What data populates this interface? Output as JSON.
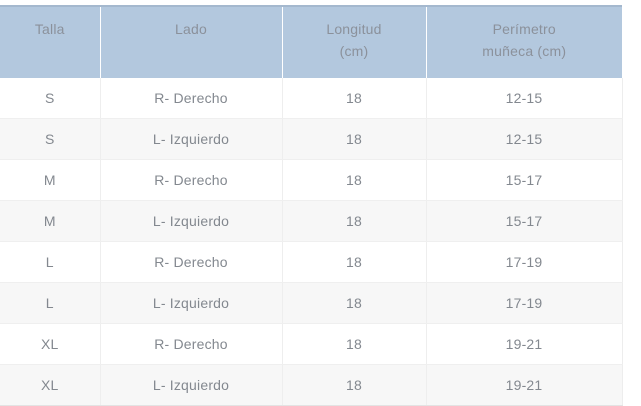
{
  "size_table": {
    "columns": [
      {
        "id": "talla",
        "line1": "Talla"
      },
      {
        "id": "lado",
        "line1": "Lado"
      },
      {
        "id": "longitud",
        "line1": "Longitud",
        "line2": "(cm)"
      },
      {
        "id": "perimetro",
        "line1": "Perímetro",
        "line2": "muñeca (cm)"
      }
    ],
    "rows": [
      [
        "S",
        "R- Derecho",
        "18",
        "12-15"
      ],
      [
        "S",
        "L- Izquierdo",
        "18",
        "12-15"
      ],
      [
        "M",
        "R- Derecho",
        "18",
        "15-17"
      ],
      [
        "M",
        "L- Izquierdo",
        "18",
        "15-17"
      ],
      [
        "L",
        "R- Derecho",
        "18",
        "17-19"
      ],
      [
        "L",
        "L- Izquierdo",
        "18",
        "17-19"
      ],
      [
        "XL",
        "R- Derecho",
        "18",
        "19-21"
      ],
      [
        "XL",
        "L- Izquierdo",
        "18",
        "19-21"
      ]
    ],
    "colors": {
      "header_bg": "#b3c8de",
      "header_top_border": "#a4b8ce",
      "header_text": "#8b919b",
      "body_text": "#83888f",
      "alt_row_bg": "#f7f7f7",
      "grid_line": "#eeeeee",
      "header_separator": "#ffffff"
    }
  }
}
